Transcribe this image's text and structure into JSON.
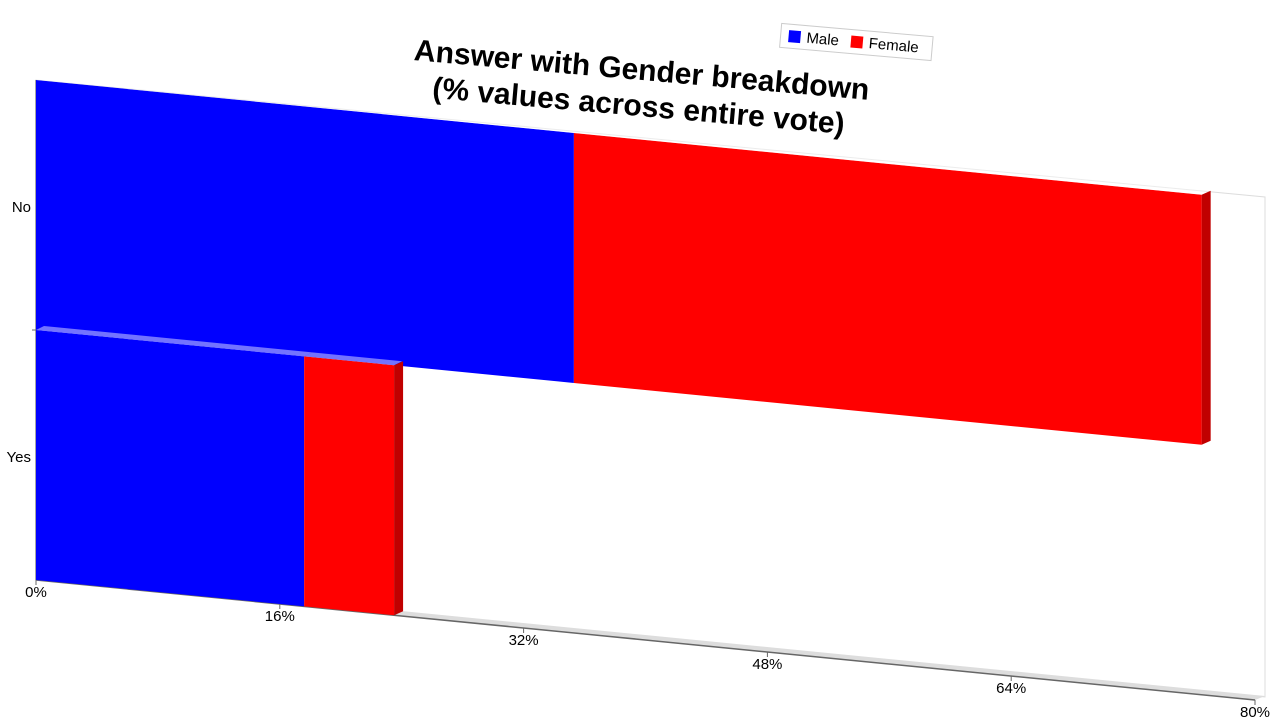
{
  "chart_data": {
    "type": "bar",
    "orientation": "horizontal",
    "stacked": true,
    "title": [
      "Answer with Gender breakdown",
      "(% values across entire vote)"
    ],
    "categories": [
      "No",
      "Yes"
    ],
    "series": [
      {
        "name": "Male",
        "color": "#0000ff",
        "values": [
          35.3,
          17.6
        ]
      },
      {
        "name": "Female",
        "color": "#ff0000",
        "values": [
          41.2,
          5.9
        ]
      }
    ],
    "xlim": [
      0,
      80
    ],
    "xticks": [
      {
        "value": 0,
        "label": "0%"
      },
      {
        "value": 16,
        "label": "16%"
      },
      {
        "value": 32,
        "label": "32%"
      },
      {
        "value": 48,
        "label": "48%"
      },
      {
        "value": 64,
        "label": "64%"
      },
      {
        "value": 80,
        "label": "80%"
      }
    ],
    "legend": "top"
  }
}
